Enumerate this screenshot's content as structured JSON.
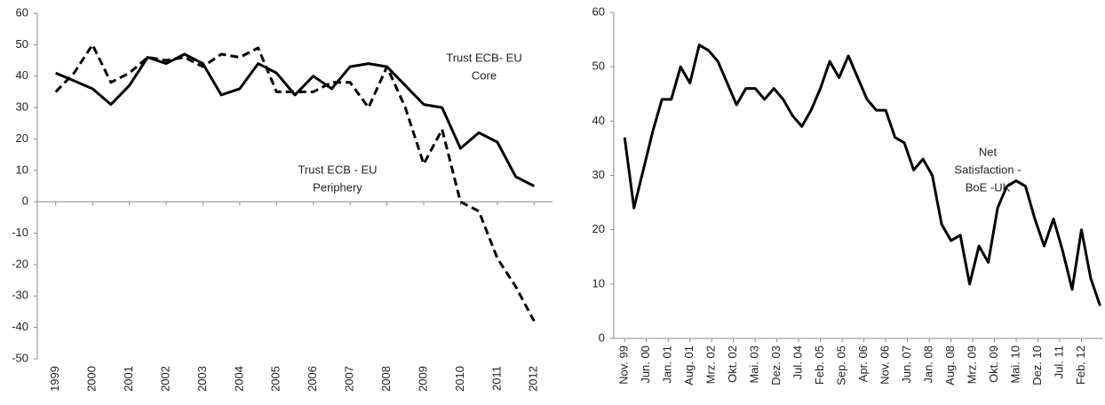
{
  "chart_data": [
    {
      "type": "line",
      "x": [
        1999,
        1999.5,
        2000,
        2000.5,
        2001,
        2001.5,
        2002,
        2002.5,
        2003,
        2003.5,
        2004,
        2004.5,
        2005,
        2005.5,
        2006,
        2006.5,
        2007,
        2007.5,
        2008,
        2008.5,
        2009,
        2009.5,
        2010,
        2010.5,
        2011,
        2011.5,
        2012
      ],
      "series": [
        {
          "color": "#000000",
          "dash": false,
          "values": [
            41,
            38.5,
            36,
            31,
            37,
            46,
            44,
            47,
            44,
            34,
            36,
            44,
            41,
            34,
            40,
            36,
            43,
            44,
            43,
            37,
            31,
            30,
            17,
            22,
            19,
            8,
            5
          ]
        },
        {
          "color": "#000000",
          "dash": true,
          "values": [
            35,
            41,
            50,
            38,
            41,
            46,
            45,
            46,
            43,
            47,
            46,
            49,
            35,
            35,
            35,
            38,
            38,
            30,
            43,
            30,
            12,
            23,
            0,
            -3,
            -18,
            -27,
            -38
          ]
        }
      ],
      "annotations": [
        [
          "Trust ECB- EU",
          "Core"
        ],
        [
          "Trust ECB - EU",
          "Periphery"
        ]
      ],
      "xlim": [
        1998.5,
        2012.5
      ],
      "xticks": [
        1999,
        2000,
        2001,
        2002,
        2003,
        2004,
        2005,
        2006,
        2007,
        2008,
        2009,
        2010,
        2011,
        2012
      ],
      "ylim": [
        -50,
        60
      ],
      "yticks": [
        -50,
        -40,
        -30,
        -20,
        -10,
        0,
        10,
        20,
        30,
        40,
        50,
        60
      ]
    },
    {
      "type": "line",
      "x": [
        0,
        3,
        6,
        9,
        12,
        15,
        18,
        21,
        24,
        27,
        30,
        33,
        36,
        39,
        42,
        45,
        48,
        51,
        54,
        57,
        60,
        63,
        66,
        69,
        72,
        75,
        78,
        81,
        84,
        87,
        90,
        93,
        96,
        99,
        102,
        105,
        108,
        111,
        114,
        117,
        120,
        123,
        126,
        129,
        132,
        135,
        138,
        141,
        144,
        147,
        150,
        153
      ],
      "series": [
        {
          "color": "#000000",
          "dash": false,
          "values": [
            37,
            24,
            31,
            38,
            44,
            44,
            50,
            47,
            54,
            53,
            51,
            47,
            43,
            46,
            46,
            44,
            46,
            44,
            41,
            39,
            42,
            46,
            51,
            48,
            52,
            48,
            44,
            42,
            42,
            37,
            36,
            31,
            33,
            30,
            21,
            18,
            19,
            10,
            17,
            14,
            24,
            28,
            29,
            28,
            22,
            17,
            22,
            16,
            9,
            20,
            11,
            6
          ]
        }
      ],
      "annotations": [
        [
          "Net",
          "Satisfaction -",
          "BoE -UK"
        ]
      ],
      "xlim": [
        -3.5,
        154
      ],
      "xticks": [
        {
          "value": 0,
          "label": "Nov. 99"
        },
        {
          "value": 7,
          "label": "Jun. 00"
        },
        {
          "value": 14,
          "label": "Jan. 01"
        },
        {
          "value": 21,
          "label": "Aug. 01"
        },
        {
          "value": 28,
          "label": "Mrz. 02"
        },
        {
          "value": 35,
          "label": "Okt. 02"
        },
        {
          "value": 42,
          "label": "Mai. 03"
        },
        {
          "value": 49,
          "label": "Dez. 03"
        },
        {
          "value": 56,
          "label": "Jul. 04"
        },
        {
          "value": 63,
          "label": "Feb. 05"
        },
        {
          "value": 70,
          "label": "Sep. 05"
        },
        {
          "value": 77,
          "label": "Apr. 06"
        },
        {
          "value": 84,
          "label": "Nov. 06"
        },
        {
          "value": 91,
          "label": "Jun. 07"
        },
        {
          "value": 98,
          "label": "Jan. 08"
        },
        {
          "value": 105,
          "label": "Aug. 08"
        },
        {
          "value": 112,
          "label": "Mrz. 09"
        },
        {
          "value": 119,
          "label": "Okt. 09"
        },
        {
          "value": 126,
          "label": "Mai. 10"
        },
        {
          "value": 133,
          "label": "Dez. 10"
        },
        {
          "value": 140,
          "label": "Jul. 11"
        },
        {
          "value": 147,
          "label": "Feb. 12"
        }
      ],
      "ylim": [
        0,
        60
      ],
      "yticks": [
        0,
        10,
        20,
        30,
        40,
        50,
        60
      ]
    }
  ]
}
